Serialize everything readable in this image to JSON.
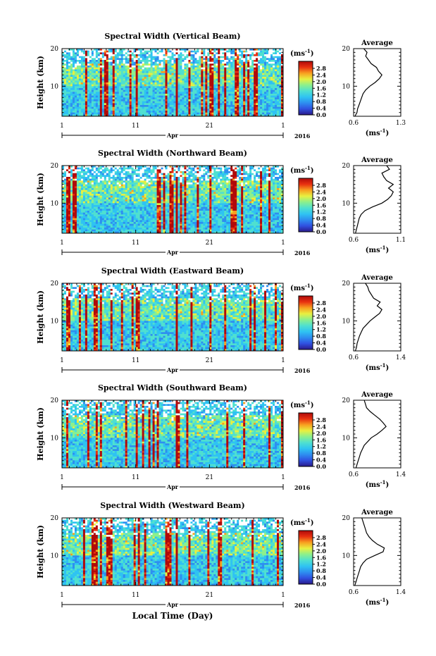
{
  "figure": {
    "xlabel": "Local Time (Day)",
    "month_label": "Apr",
    "year_label": "2016",
    "colorbar_unit": "(ms",
    "colorbar_unit_exp": "-1",
    "colorbar_unit_close": ")",
    "colorbar_ticks": [
      "0.0",
      "0.4",
      "0.8",
      "1.2",
      "1.6",
      "2.0",
      "2.4",
      "2.8"
    ],
    "avg_title": "Average",
    "avg_xlabel": "(ms",
    "ylabel": "Height (km)",
    "colormap": [
      "#2a1a8a",
      "#3050e0",
      "#2e8ef0",
      "#2fc3f2",
      "#4fe0d0",
      "#8cf08c",
      "#e8f040",
      "#f8a020",
      "#e83010",
      "#b00a0a"
    ]
  },
  "chart_data": [
    {
      "type": "heatmap",
      "title": "Spectral Width (Vertical Beam)",
      "x_tick_labels": [
        "1",
        "11",
        "21",
        "1"
      ],
      "y_tick_labels": [
        "10",
        "20"
      ],
      "ylim": [
        2,
        20
      ],
      "avg": {
        "xlim": [
          0.6,
          1.3
        ],
        "xtick_labels": [
          "0.6",
          "1.3"
        ],
        "height": [
          2,
          3,
          4,
          5,
          6,
          7,
          8,
          9,
          10,
          11,
          12,
          13,
          14,
          15,
          16,
          17,
          18,
          19,
          20
        ],
        "width": [
          0.62,
          0.65,
          0.66,
          0.68,
          0.7,
          0.72,
          0.74,
          0.78,
          0.84,
          0.92,
          0.98,
          1.02,
          0.97,
          0.94,
          0.86,
          0.82,
          0.78,
          0.8,
          0.75
        ]
      }
    },
    {
      "type": "heatmap",
      "title": "Spectral Width (Northward Beam)",
      "x_tick_labels": [
        "1",
        "11",
        "21",
        "1"
      ],
      "y_tick_labels": [
        "10",
        "20"
      ],
      "ylim": [
        2,
        20
      ],
      "avg": {
        "xlim": [
          0.6,
          1.1
        ],
        "xtick_labels": [
          "0.6",
          "1.1"
        ],
        "height": [
          2,
          3,
          4,
          5,
          6,
          7,
          8,
          9,
          10,
          11,
          12,
          13,
          14,
          15,
          16,
          17,
          18,
          19,
          20
        ],
        "width": [
          0.62,
          0.63,
          0.64,
          0.65,
          0.66,
          0.68,
          0.72,
          0.8,
          0.9,
          0.96,
          1.0,
          1.02,
          0.97,
          1.02,
          0.95,
          0.92,
          0.9,
          0.98,
          0.95
        ]
      }
    },
    {
      "type": "heatmap",
      "title": "Spectral Width (Eastward Beam)",
      "x_tick_labels": [
        "1",
        "11",
        "21",
        "1"
      ],
      "y_tick_labels": [
        "10",
        "20"
      ],
      "ylim": [
        2,
        20
      ],
      "avg": {
        "xlim": [
          0.6,
          1.4
        ],
        "xtick_labels": [
          "0.6",
          "1.4"
        ],
        "height": [
          2,
          3,
          4,
          5,
          6,
          7,
          8,
          9,
          10,
          11,
          12,
          13,
          14,
          15,
          16,
          17,
          18,
          19,
          20
        ],
        "width": [
          0.63,
          0.65,
          0.66,
          0.68,
          0.7,
          0.73,
          0.76,
          0.82,
          0.88,
          0.96,
          1.04,
          1.08,
          1.0,
          1.05,
          0.94,
          0.9,
          0.86,
          0.84,
          0.8
        ]
      }
    },
    {
      "type": "heatmap",
      "title": "Spectral Width (Southward Beam)",
      "x_tick_labels": [
        "1",
        "11",
        "21",
        "1"
      ],
      "y_tick_labels": [
        "10",
        "20"
      ],
      "ylim": [
        2,
        20
      ],
      "avg": {
        "xlim": [
          0.6,
          1.4
        ],
        "xtick_labels": [
          "0.6",
          "1.4"
        ],
        "height": [
          2,
          3,
          4,
          5,
          6,
          7,
          8,
          9,
          10,
          11,
          12,
          13,
          14,
          15,
          16,
          17,
          18,
          19,
          20
        ],
        "width": [
          0.64,
          0.66,
          0.68,
          0.7,
          0.72,
          0.75,
          0.78,
          0.84,
          0.9,
          1.0,
          1.08,
          1.15,
          1.1,
          1.04,
          0.96,
          0.88,
          0.82,
          0.8,
          0.78
        ]
      }
    },
    {
      "type": "heatmap",
      "title": "Spectral Width (Westward Beam)",
      "x_tick_labels": [
        "1",
        "11",
        "21",
        "1"
      ],
      "y_tick_labels": [
        "10",
        "20"
      ],
      "ylim": [
        2,
        20
      ],
      "avg": {
        "xlim": [
          0.6,
          1.4
        ],
        "xtick_labels": [
          "0.6",
          "1.4"
        ],
        "height": [
          2,
          3,
          4,
          5,
          6,
          7,
          8,
          9,
          10,
          11,
          12,
          13,
          14,
          15,
          16,
          17,
          18,
          19,
          20
        ],
        "width": [
          0.62,
          0.64,
          0.66,
          0.68,
          0.7,
          0.72,
          0.76,
          0.82,
          0.96,
          1.1,
          1.12,
          1.0,
          0.92,
          0.86,
          0.82,
          0.8,
          0.78,
          0.76,
          0.74
        ]
      }
    }
  ]
}
